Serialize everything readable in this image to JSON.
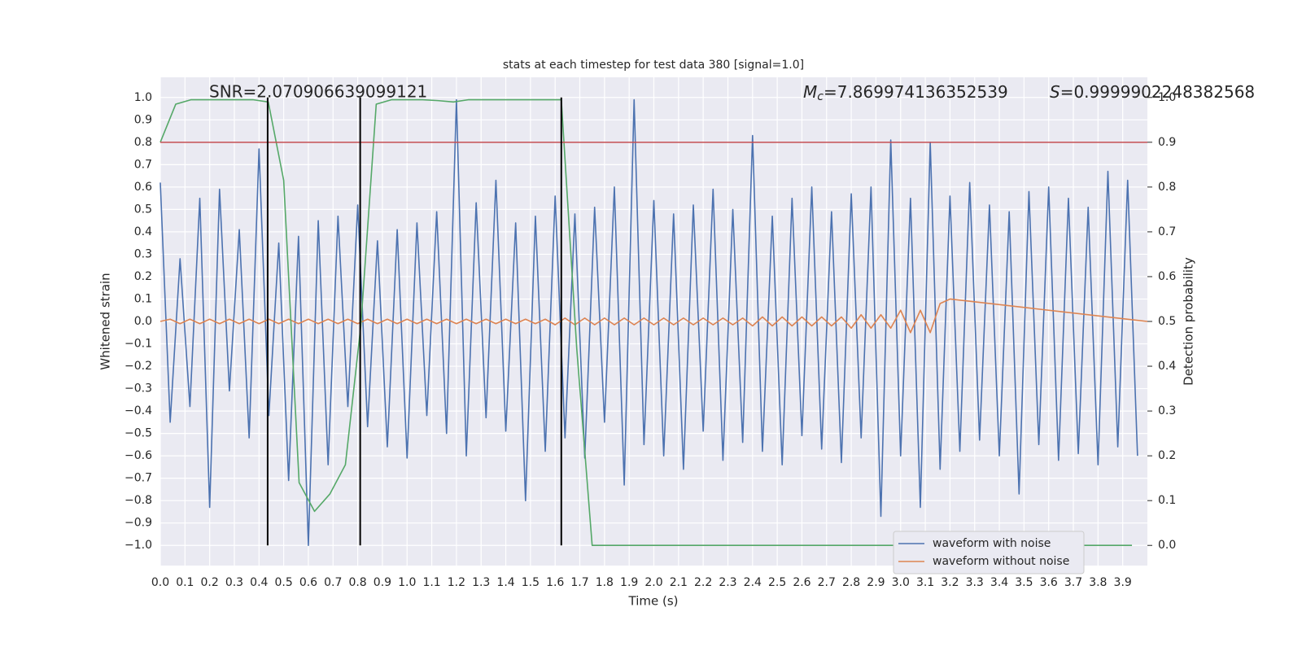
{
  "chart_data": {
    "type": "line",
    "title": "stats at each timestep for test data 380 [signal=1.0]",
    "xlabel": "Time (s)",
    "ylabel": "Whitened strain",
    "y2label": "Detection probability",
    "annotations": {
      "snr": "SNR=2.070906639099121",
      "mc": {
        "symbol": "M",
        "subscript": "c",
        "text": "=7.869974136352539"
      },
      "s": {
        "symbol": "S",
        "text": "=0.9999902248382568"
      }
    },
    "xlim": [
      0,
      4.0
    ],
    "ylim": [
      -1.09,
      1.09
    ],
    "y2lim": [
      -0.045,
      1.045
    ],
    "grid": true,
    "legend": "lower right",
    "xticks": [
      {
        "value": 0,
        "label": "0.0"
      },
      {
        "value": 0.1,
        "label": "0.1"
      },
      {
        "value": 0.2,
        "label": "0.2"
      },
      {
        "value": 0.3,
        "label": "0.3"
      },
      {
        "value": 0.4,
        "label": "0.4"
      },
      {
        "value": 0.5,
        "label": "0.5"
      },
      {
        "value": 0.6,
        "label": "0.6"
      },
      {
        "value": 0.7,
        "label": "0.7"
      },
      {
        "value": 0.8,
        "label": "0.8"
      },
      {
        "value": 0.9,
        "label": "0.9"
      },
      {
        "value": 1,
        "label": "1.0"
      },
      {
        "value": 1.1,
        "label": "1.1"
      },
      {
        "value": 1.2,
        "label": "1.2"
      },
      {
        "value": 1.3,
        "label": "1.3"
      },
      {
        "value": 1.4,
        "label": "1.4"
      },
      {
        "value": 1.5,
        "label": "1.5"
      },
      {
        "value": 1.6,
        "label": "1.6"
      },
      {
        "value": 1.7,
        "label": "1.7"
      },
      {
        "value": 1.8,
        "label": "1.8"
      },
      {
        "value": 1.9,
        "label": "1.9"
      },
      {
        "value": 2,
        "label": "2.0"
      },
      {
        "value": 2.1,
        "label": "2.1"
      },
      {
        "value": 2.2,
        "label": "2.2"
      },
      {
        "value": 2.3,
        "label": "2.3"
      },
      {
        "value": 2.4,
        "label": "2.4"
      },
      {
        "value": 2.5,
        "label": "2.5"
      },
      {
        "value": 2.6,
        "label": "2.6"
      },
      {
        "value": 2.7,
        "label": "2.7"
      },
      {
        "value": 2.8,
        "label": "2.8"
      },
      {
        "value": 2.9,
        "label": "2.9"
      },
      {
        "value": 3,
        "label": "3.0"
      },
      {
        "value": 3.1,
        "label": "3.1"
      },
      {
        "value": 3.2,
        "label": "3.2"
      },
      {
        "value": 3.3,
        "label": "3.3"
      },
      {
        "value": 3.4,
        "label": "3.4"
      },
      {
        "value": 3.5,
        "label": "3.5"
      },
      {
        "value": 3.6,
        "label": "3.6"
      },
      {
        "value": 3.7,
        "label": "3.7"
      },
      {
        "value": 3.8,
        "label": "3.8"
      },
      {
        "value": 3.9,
        "label": "3.9"
      }
    ],
    "yticks": [
      {
        "value": -1,
        "label": "−1.0"
      },
      {
        "value": -0.9,
        "label": "−0.9"
      },
      {
        "value": -0.8,
        "label": "−0.8"
      },
      {
        "value": -0.7,
        "label": "−0.7"
      },
      {
        "value": -0.6,
        "label": "−0.6"
      },
      {
        "value": -0.5,
        "label": "−0.5"
      },
      {
        "value": -0.4,
        "label": "−0.4"
      },
      {
        "value": -0.3,
        "label": "−0.3"
      },
      {
        "value": -0.2,
        "label": "−0.2"
      },
      {
        "value": -0.1,
        "label": "−0.1"
      },
      {
        "value": 0,
        "label": "0.0"
      },
      {
        "value": 0.1,
        "label": "0.1"
      },
      {
        "value": 0.2,
        "label": "0.2"
      },
      {
        "value": 0.3,
        "label": "0.3"
      },
      {
        "value": 0.4,
        "label": "0.4"
      },
      {
        "value": 0.5,
        "label": "0.5"
      },
      {
        "value": 0.6,
        "label": "0.6"
      },
      {
        "value": 0.7,
        "label": "0.7"
      },
      {
        "value": 0.8,
        "label": "0.8"
      },
      {
        "value": 0.9,
        "label": "0.9"
      },
      {
        "value": 1,
        "label": "1.0"
      }
    ],
    "y2ticks": [
      {
        "value": 0,
        "label": "0.0"
      },
      {
        "value": 0.1,
        "label": "0.1"
      },
      {
        "value": 0.2,
        "label": "0.2"
      },
      {
        "value": 0.3,
        "label": "0.3"
      },
      {
        "value": 0.4,
        "label": "0.4"
      },
      {
        "value": 0.5,
        "label": "0.5"
      },
      {
        "value": 0.6,
        "label": "0.6"
      },
      {
        "value": 0.7,
        "label": "0.7"
      },
      {
        "value": 0.8,
        "label": "0.8"
      },
      {
        "value": 0.9,
        "label": "0.9"
      },
      {
        "value": 1,
        "label": "1.0"
      }
    ],
    "series": [
      {
        "name": "waveform with noise",
        "color": "#4c72b0",
        "x": [
          0,
          0.04,
          0.08,
          0.12,
          0.16,
          0.2,
          0.24,
          0.28,
          0.32,
          0.36,
          0.4,
          0.44,
          0.48,
          0.52,
          0.56,
          0.6,
          0.64,
          0.68,
          0.72,
          0.76,
          0.8,
          0.84,
          0.88,
          0.92,
          0.96,
          1,
          1.04,
          1.08,
          1.12,
          1.16,
          1.2,
          1.24,
          1.28,
          1.32,
          1.36,
          1.4,
          1.44,
          1.48,
          1.52,
          1.56,
          1.6,
          1.64,
          1.68,
          1.72,
          1.76,
          1.8,
          1.84,
          1.88,
          1.92,
          1.96,
          2,
          2.04,
          2.08,
          2.12,
          2.16,
          2.2,
          2.24,
          2.28,
          2.32,
          2.36,
          2.4,
          2.44,
          2.48,
          2.52,
          2.56,
          2.6,
          2.64,
          2.68,
          2.72,
          2.76,
          2.8,
          2.84,
          2.88,
          2.92,
          2.96,
          3,
          3.04,
          3.08,
          3.12,
          3.16,
          3.2,
          3.24,
          3.28,
          3.32,
          3.36,
          3.4,
          3.44,
          3.48,
          3.52,
          3.56,
          3.6,
          3.64,
          3.68,
          3.72,
          3.76,
          3.8,
          3.84,
          3.88,
          3.92,
          3.96
        ],
        "values": [
          0.62,
          -0.45,
          0.28,
          -0.38,
          0.55,
          -0.83,
          0.59,
          -0.31,
          0.41,
          -0.52,
          0.77,
          -0.42,
          0.35,
          -0.71,
          0.38,
          -1.0,
          0.45,
          -0.64,
          0.47,
          -0.38,
          0.52,
          -0.47,
          0.36,
          -0.56,
          0.41,
          -0.61,
          0.44,
          -0.42,
          0.49,
          -0.5,
          0.99,
          -0.6,
          0.53,
          -0.43,
          0.63,
          -0.49,
          0.44,
          -0.8,
          0.47,
          -0.58,
          0.56,
          -0.52,
          0.48,
          -0.61,
          0.51,
          -0.45,
          0.6,
          -0.73,
          0.99,
          -0.55,
          0.54,
          -0.6,
          0.48,
          -0.66,
          0.52,
          -0.49,
          0.59,
          -0.62,
          0.5,
          -0.54,
          0.83,
          -0.58,
          0.47,
          -0.64,
          0.55,
          -0.51,
          0.6,
          -0.57,
          0.49,
          -0.63,
          0.57,
          -0.52,
          0.6,
          -0.87,
          0.81,
          -0.6,
          0.55,
          -0.83,
          0.8,
          -0.66,
          0.56,
          -0.58,
          0.62,
          -0.53,
          0.52,
          -0.6,
          0.49,
          -0.77,
          0.58,
          -0.55,
          0.6,
          -0.62,
          0.55,
          -0.59,
          0.51,
          -0.64,
          0.67,
          -0.56,
          0.63,
          -0.6
        ]
      },
      {
        "name": "waveform without noise",
        "color": "#dd8452",
        "x": [
          0,
          0.04,
          0.08,
          0.12,
          0.16,
          0.2,
          0.24,
          0.28,
          0.32,
          0.36,
          0.4,
          0.44,
          0.48,
          0.52,
          0.56,
          0.6,
          0.64,
          0.68,
          0.72,
          0.76,
          0.8,
          0.84,
          0.88,
          0.92,
          0.96,
          1,
          1.04,
          1.08,
          1.12,
          1.16,
          1.2,
          1.24,
          1.28,
          1.32,
          1.36,
          1.4,
          1.44,
          1.48,
          1.52,
          1.56,
          1.6,
          1.64,
          1.68,
          1.72,
          1.76,
          1.8,
          1.84,
          1.88,
          1.92,
          1.96,
          2,
          2.04,
          2.08,
          2.12,
          2.16,
          2.2,
          2.24,
          2.28,
          2.32,
          2.36,
          2.4,
          2.44,
          2.48,
          2.52,
          2.56,
          2.6,
          2.64,
          2.68,
          2.72,
          2.76,
          2.8,
          2.84,
          2.88,
          2.92,
          2.96,
          3,
          3.04,
          3.08,
          3.12,
          3.16,
          3.2,
          4.0
        ],
        "values": [
          0,
          0.01,
          -0.01,
          0.01,
          -0.01,
          0.01,
          -0.01,
          0.01,
          -0.01,
          0.01,
          -0.01,
          0.01,
          -0.01,
          0.01,
          -0.01,
          0.01,
          -0.01,
          0.01,
          -0.01,
          0.01,
          -0.01,
          0.01,
          -0.01,
          0.01,
          -0.01,
          0.01,
          -0.01,
          0.01,
          -0.01,
          0.01,
          -0.01,
          0.01,
          -0.01,
          0.01,
          -0.01,
          0.01,
          -0.01,
          0.01,
          -0.01,
          0.01,
          -0.015,
          0.015,
          -0.015,
          0.015,
          -0.015,
          0.015,
          -0.015,
          0.015,
          -0.015,
          0.015,
          -0.015,
          0.015,
          -0.015,
          0.015,
          -0.015,
          0.015,
          -0.015,
          0.015,
          -0.015,
          0.015,
          -0.02,
          0.02,
          -0.02,
          0.02,
          -0.02,
          0.02,
          -0.02,
          0.02,
          -0.02,
          0.02,
          -0.03,
          0.03,
          -0.03,
          0.03,
          -0.03,
          0.05,
          -0.05,
          0.05,
          -0.05,
          0.08,
          0.1,
          0
        ]
      },
      {
        "color": "#55a868",
        "axis": "y2",
        "x": [
          0,
          0.0625,
          0.125,
          0.1875,
          0.25,
          0.3125,
          0.375,
          0.4375,
          0.5,
          0.5625,
          0.625,
          0.6875,
          0.75,
          0.8125,
          0.875,
          0.9375,
          1,
          1.0625,
          1.125,
          1.1875,
          1.25,
          1.3125,
          1.375,
          1.4375,
          1.5,
          1.5625,
          1.625,
          1.6875,
          1.75,
          1.8125,
          1.875,
          1.9375,
          2,
          2.0625,
          2.125,
          2.1875,
          2.25,
          2.3125,
          2.375,
          2.4375,
          2.5,
          2.5625,
          2.625,
          2.6875,
          2.75,
          2.8125,
          2.875,
          2.9375,
          3,
          3.0625,
          3.125,
          3.1875,
          3.25,
          3.3125,
          3.375,
          3.4375,
          3.5,
          3.5625,
          3.625,
          3.6875,
          3.75,
          3.8125,
          3.875,
          3.9375
        ],
        "values": [
          0.9,
          0.985,
          0.995,
          0.995,
          0.995,
          0.995,
          0.995,
          0.99,
          0.815,
          0.14,
          0.076,
          0.115,
          0.18,
          0.49,
          0.985,
          0.995,
          0.995,
          0.995,
          0.993,
          0.99,
          0.995,
          0.995,
          0.995,
          0.995,
          0.995,
          0.995,
          0.995,
          0.44,
          0,
          0,
          0,
          0,
          0,
          0,
          0,
          0,
          0,
          0,
          0,
          0,
          0,
          0,
          0,
          0,
          0,
          0,
          0,
          0,
          0,
          0,
          0,
          0,
          0,
          0,
          0,
          0,
          0,
          0,
          0,
          0,
          0,
          0,
          0,
          0
        ]
      }
    ],
    "vlines": {
      "x": [
        0.435,
        0.81,
        1.625
      ],
      "ymin": -1,
      "ymax": 1,
      "color": "#000000"
    },
    "hline": {
      "y": 0.9,
      "axis": "y2",
      "color": "#c44e52"
    }
  }
}
